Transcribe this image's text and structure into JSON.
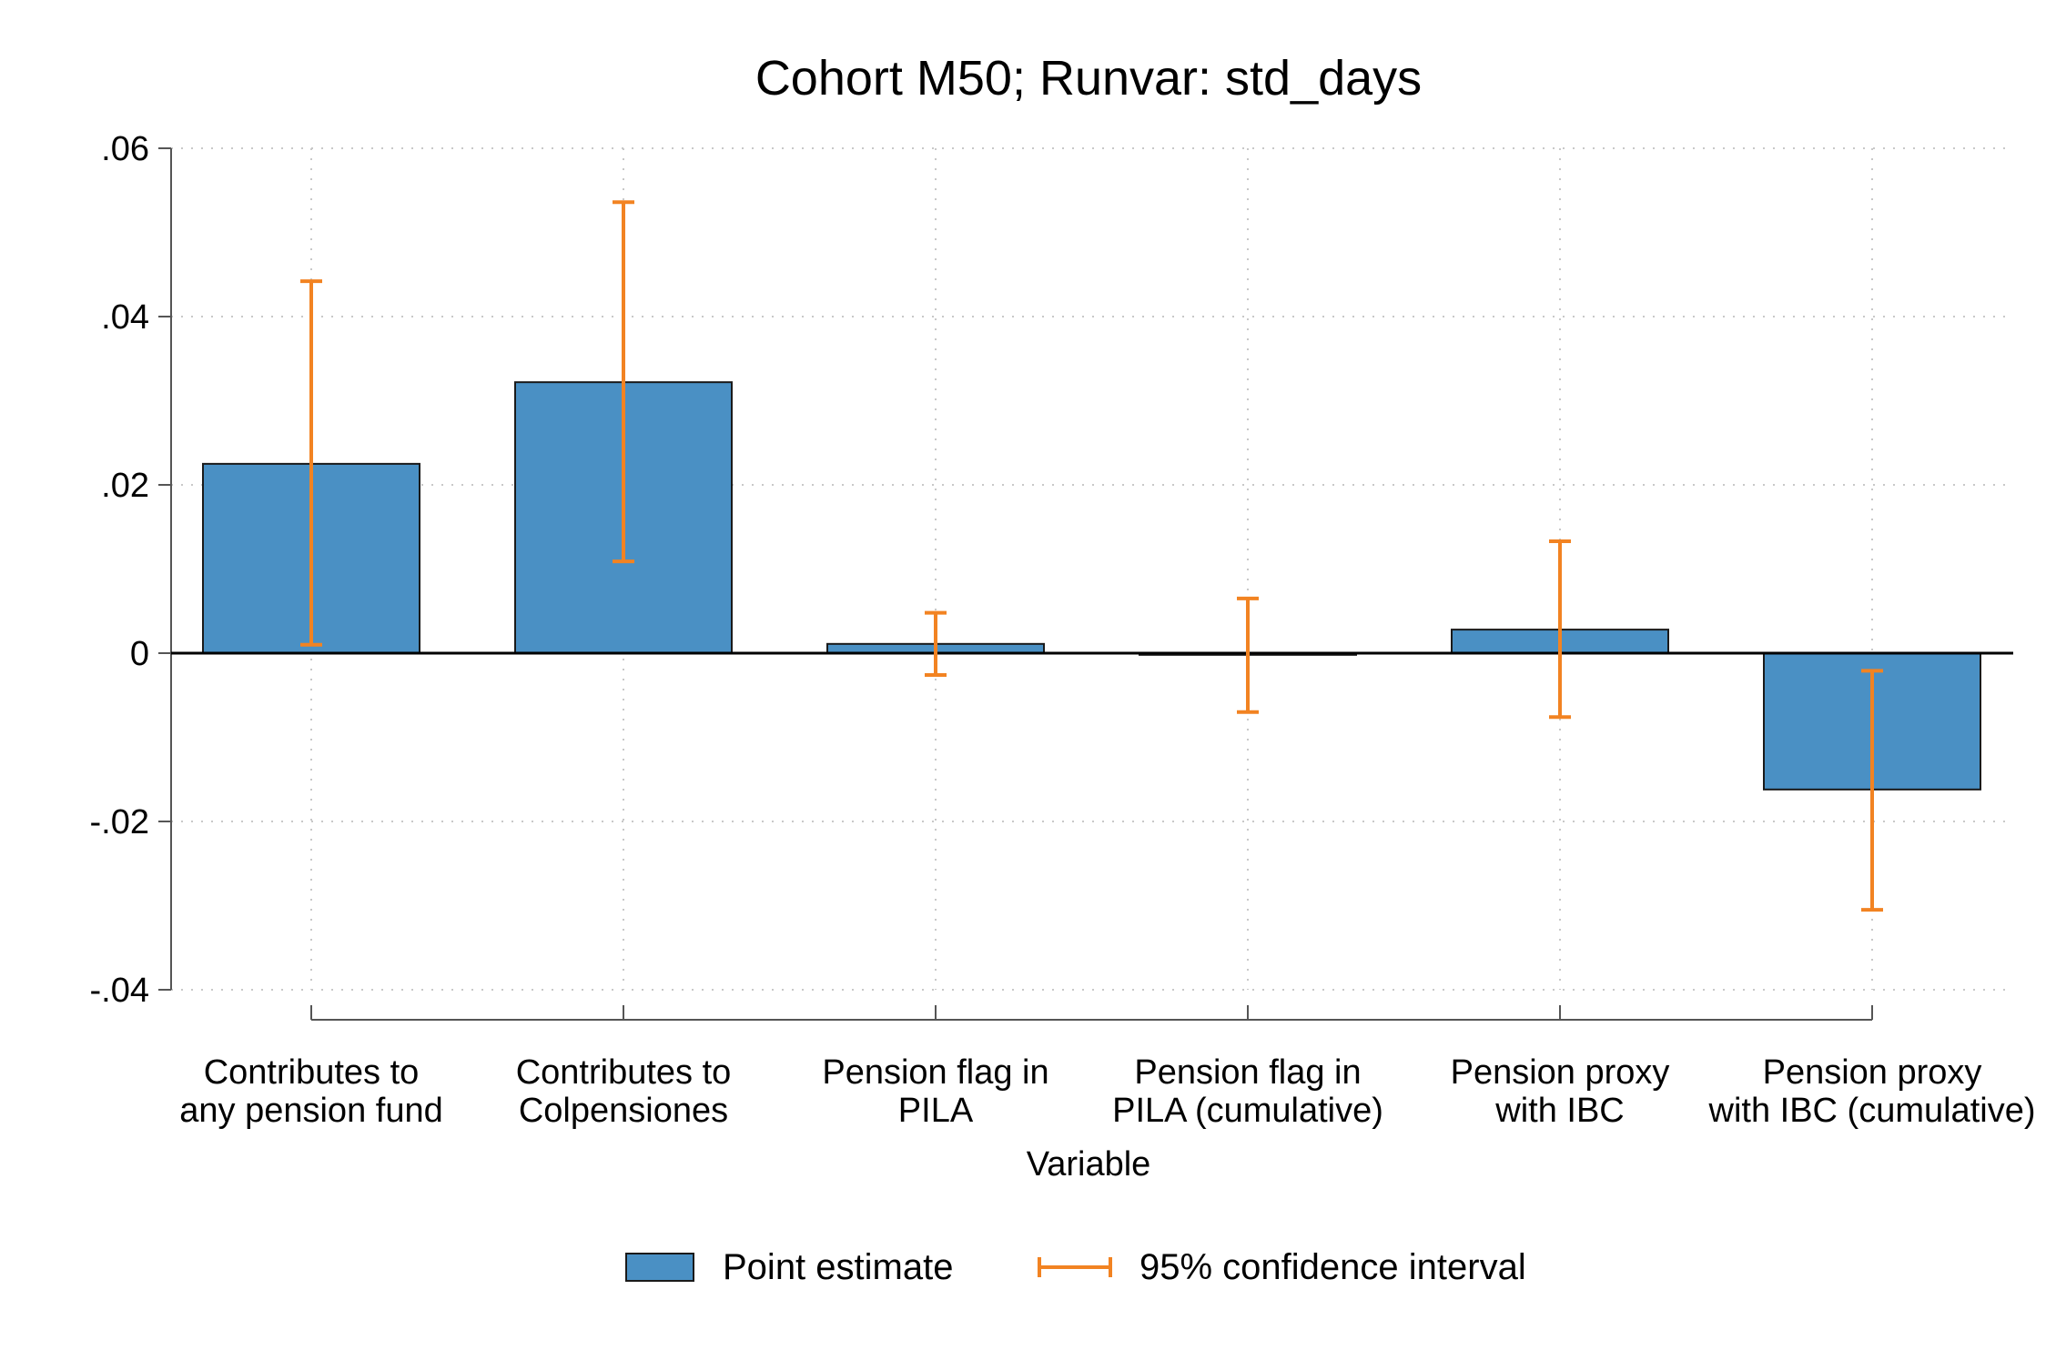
{
  "chart_data": {
    "type": "bar",
    "title": "Cohort M50; Runvar: std_days",
    "xlabel": "Variable",
    "ylabel": "",
    "ylim": [
      -0.04,
      0.06
    ],
    "yticks": [
      {
        "value": 0.06,
        "label": ".06"
      },
      {
        "value": 0.04,
        "label": ".04"
      },
      {
        "value": 0.02,
        "label": ".02"
      },
      {
        "value": 0,
        "label": "0"
      },
      {
        "value": -0.02,
        "label": "-.02"
      },
      {
        "value": -0.04,
        "label": "-.04"
      }
    ],
    "grid": true,
    "legend_position": "bottom",
    "categories": [
      [
        "Contributes to",
        "any pension fund"
      ],
      [
        "Contributes to",
        "Colpensiones"
      ],
      [
        "Pension flag in",
        "PILA"
      ],
      [
        "Pension flag in",
        "PILA (cumulative)"
      ],
      [
        "Pension proxy",
        "with IBC"
      ],
      [
        "Pension proxy",
        "with IBC (cumulative)"
      ]
    ],
    "series": [
      {
        "name": "Point estimate",
        "values": [
          0.0225,
          0.0322,
          0.0011,
          -0.0002,
          0.0028,
          -0.0162
        ]
      },
      {
        "name": "95% confidence interval",
        "lower": [
          0.001,
          0.0109,
          -0.0026,
          -0.007,
          -0.0076,
          -0.0305
        ],
        "upper": [
          0.0442,
          0.0536,
          0.0048,
          0.0065,
          0.0133,
          -0.0021
        ]
      }
    ],
    "colors": {
      "bar": "#4a90c4",
      "bar_edge": "#1a1a1a",
      "ci": "#f28322",
      "axis": "#000000",
      "grid": "#c8c8c8"
    }
  }
}
